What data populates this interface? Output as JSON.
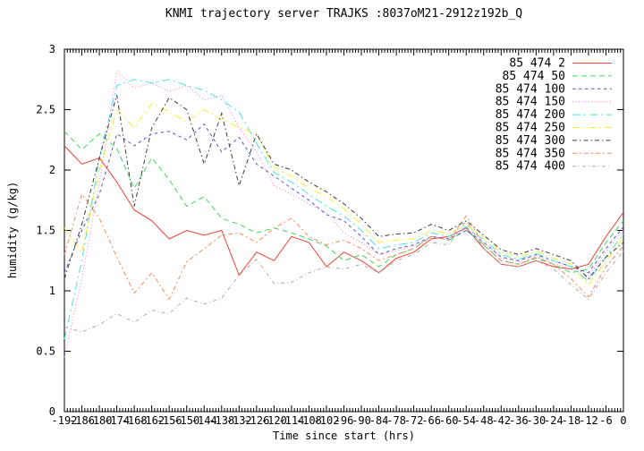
{
  "chart_data": {
    "type": "line",
    "title": "KNMI trajectory server TRAJKS :8037oM21-2912z192b_Q",
    "xlabel": "Time since start (hrs)",
    "ylabel": "humidity (g/kg)",
    "xlim": [
      -192,
      0
    ],
    "ylim": [
      0,
      3
    ],
    "x_major_step": 6,
    "x_minor_step": 1,
    "y_major_step": 0.5,
    "grid": false,
    "legend_position": "top-right-inside",
    "axis_color": "#000000",
    "background": "#ffffff",
    "x_tick_labels": [
      "-192",
      "-186",
      "-180",
      "-174",
      "-168",
      "-162",
      "-156",
      "-150",
      "-144",
      "-138",
      "-132",
      "-126",
      "-120",
      "-114",
      "-108",
      "-102",
      "-96",
      "-90",
      "-84",
      "-78",
      "-72",
      "-66",
      "-60",
      "-54",
      "-48",
      "-42",
      "-36",
      "-30",
      "-24",
      "-18",
      "-12",
      "-6",
      "0"
    ],
    "y_tick_labels": [
      "0",
      "0.5",
      "1",
      "1.5",
      "2",
      "2.5",
      "3"
    ],
    "x": [
      -192,
      -186,
      -180,
      -174,
      -168,
      -162,
      -156,
      -150,
      -144,
      -138,
      -132,
      -126,
      -120,
      -114,
      -108,
      -102,
      -96,
      -90,
      -84,
      -78,
      -72,
      -66,
      -60,
      -54,
      -48,
      -42,
      -36,
      -30,
      -24,
      -18,
      -12,
      -6,
      0
    ],
    "series": [
      {
        "name": "85 474 2",
        "color": "#ee4136",
        "dash": "",
        "values": [
          2.2,
          2.05,
          2.1,
          1.9,
          1.67,
          1.58,
          1.43,
          1.5,
          1.46,
          1.5,
          1.13,
          1.32,
          1.25,
          1.45,
          1.4,
          1.2,
          1.32,
          1.25,
          1.15,
          1.27,
          1.32,
          1.43,
          1.45,
          1.52,
          1.35,
          1.22,
          1.2,
          1.25,
          1.2,
          1.18,
          1.22,
          1.45,
          1.65
        ]
      },
      {
        "name": "85 474 50",
        "color": "#44d35c",
        "dash": "6,4",
        "values": [
          2.32,
          2.17,
          2.3,
          2.18,
          1.85,
          2.1,
          1.92,
          1.7,
          1.78,
          1.6,
          1.55,
          1.48,
          1.52,
          1.48,
          1.43,
          1.37,
          1.25,
          1.3,
          1.2,
          1.3,
          1.35,
          1.45,
          1.42,
          1.5,
          1.38,
          1.25,
          1.22,
          1.27,
          1.22,
          1.15,
          1.18,
          1.4,
          1.58
        ]
      },
      {
        "name": "85 474 100",
        "color": "#5456c8",
        "dash": "3.5,3.5",
        "values": [
          1.15,
          1.5,
          1.8,
          2.3,
          2.2,
          2.3,
          2.32,
          2.25,
          2.38,
          2.15,
          2.27,
          2.05,
          1.95,
          1.85,
          1.75,
          1.63,
          1.58,
          1.45,
          1.3,
          1.35,
          1.38,
          1.45,
          1.43,
          1.5,
          1.4,
          1.28,
          1.25,
          1.3,
          1.25,
          1.2,
          1.15,
          1.35,
          1.53
        ]
      },
      {
        "name": "85 474 150",
        "color": "#ef79ef",
        "dash": "1,2.5",
        "values": [
          0.45,
          1.1,
          1.9,
          2.82,
          2.68,
          2.72,
          2.65,
          2.7,
          2.58,
          2.62,
          2.35,
          2.15,
          1.87,
          1.8,
          1.72,
          1.65,
          1.48,
          1.4,
          1.3,
          1.33,
          1.37,
          1.45,
          1.44,
          1.52,
          1.4,
          1.27,
          1.24,
          1.29,
          1.23,
          1.18,
          1.12,
          1.32,
          1.5
        ]
      },
      {
        "name": "85 474 200",
        "color": "#4ae3e8",
        "dash": "9,4,2,4",
        "values": [
          0.6,
          1.25,
          2.1,
          2.7,
          2.75,
          2.72,
          2.75,
          2.7,
          2.66,
          2.58,
          2.48,
          2.22,
          1.98,
          1.9,
          1.8,
          1.7,
          1.62,
          1.5,
          1.35,
          1.38,
          1.4,
          1.48,
          1.45,
          1.53,
          1.42,
          1.3,
          1.26,
          1.31,
          1.25,
          1.2,
          1.08,
          1.28,
          1.47
        ]
      },
      {
        "name": "85 474 250",
        "color": "#f2ef2f",
        "dash": "8,4,2,4",
        "values": [
          1.52,
          1.32,
          2.0,
          2.5,
          2.35,
          2.55,
          2.48,
          2.4,
          2.5,
          2.42,
          2.35,
          2.3,
          2.02,
          1.95,
          1.85,
          1.78,
          1.68,
          1.55,
          1.4,
          1.42,
          1.43,
          1.5,
          1.47,
          1.55,
          1.44,
          1.32,
          1.28,
          1.33,
          1.27,
          1.22,
          1.05,
          1.25,
          1.44
        ]
      },
      {
        "name": "85 474 300",
        "color": "#3a3a3a",
        "dash": "5,3,1.5,3",
        "values": [
          1.1,
          1.55,
          2.1,
          2.62,
          1.7,
          2.35,
          2.6,
          2.5,
          2.05,
          2.47,
          1.87,
          2.3,
          2.05,
          2.0,
          1.9,
          1.82,
          1.72,
          1.6,
          1.45,
          1.47,
          1.48,
          1.55,
          1.5,
          1.58,
          1.46,
          1.34,
          1.3,
          1.35,
          1.3,
          1.25,
          1.1,
          1.28,
          1.4
        ]
      },
      {
        "name": "85 474 350",
        "color": "#fb8a5a",
        "dash": "5,3,2,3",
        "values": [
          1.3,
          1.8,
          1.6,
          1.28,
          0.98,
          1.15,
          0.93,
          1.24,
          1.35,
          1.46,
          1.48,
          1.4,
          1.52,
          1.6,
          1.45,
          1.38,
          1.42,
          1.35,
          1.25,
          1.3,
          1.35,
          1.45,
          1.42,
          1.62,
          1.38,
          1.25,
          1.22,
          1.28,
          1.22,
          1.1,
          0.95,
          1.2,
          1.37
        ]
      },
      {
        "name": "85 474 400",
        "color": "#ababab",
        "dash": "4,3,1,3",
        "values": [
          0.7,
          0.66,
          0.72,
          0.81,
          0.74,
          0.84,
          0.81,
          0.94,
          0.89,
          0.94,
          1.13,
          1.26,
          1.06,
          1.07,
          1.15,
          1.2,
          1.18,
          1.22,
          1.15,
          1.25,
          1.3,
          1.4,
          1.38,
          1.58,
          1.35,
          1.22,
          1.2,
          1.25,
          1.18,
          1.05,
          0.93,
          1.15,
          1.33
        ]
      }
    ]
  }
}
